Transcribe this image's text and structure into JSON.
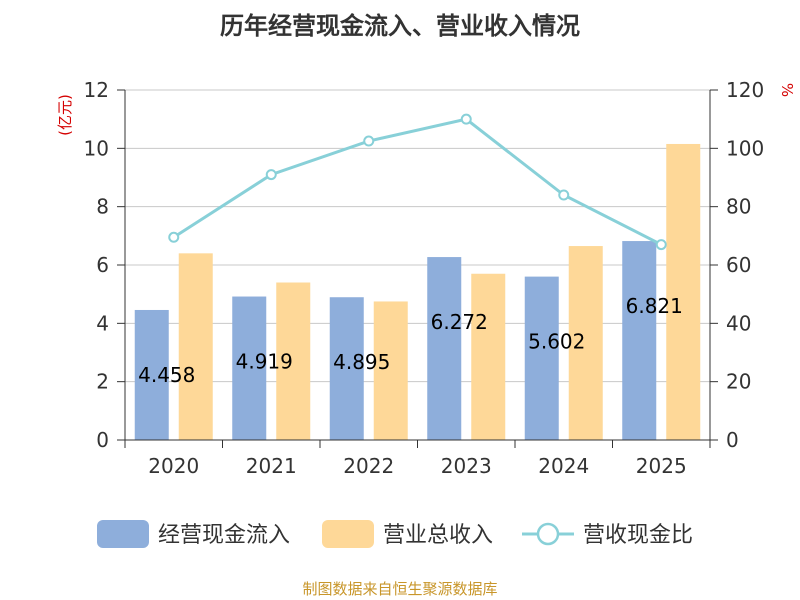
{
  "chart_data": {
    "type": "bar",
    "title": "历年经营现金流入、营业收入情况",
    "categories": [
      "2020",
      "2021",
      "2022",
      "2023",
      "2024",
      "2025"
    ],
    "left_axis": {
      "unit": "(亿元)",
      "ylim": [
        0,
        12
      ],
      "ticks": [
        "0",
        "2",
        "4",
        "6",
        "8",
        "10",
        "12"
      ]
    },
    "right_axis": {
      "unit": "%",
      "ylim": [
        0,
        120
      ],
      "ticks": [
        "0",
        "20",
        "40",
        "60",
        "80",
        "100",
        "120"
      ]
    },
    "series": [
      {
        "name": "经营现金流入",
        "kind": "bar",
        "axis": "left",
        "color": "#8eaedb",
        "values": [
          4.458,
          4.919,
          4.895,
          6.272,
          5.602,
          6.821
        ],
        "labels": [
          "4.458",
          "4.919",
          "4.895",
          "6.272",
          "5.602",
          "6.821"
        ]
      },
      {
        "name": "营业总收入",
        "kind": "bar",
        "axis": "left",
        "color": "#fed898",
        "values": [
          6.4,
          5.4,
          4.75,
          5.7,
          6.65,
          10.15
        ]
      },
      {
        "name": "营收现金比",
        "kind": "line",
        "axis": "right",
        "color": "#88d0d8",
        "values": [
          69.5,
          91,
          102.5,
          110,
          84,
          67
        ]
      }
    ],
    "grid": true,
    "legend_position": "bottom"
  },
  "footer": {
    "source": "制图数据来自恒生聚源数据库"
  }
}
